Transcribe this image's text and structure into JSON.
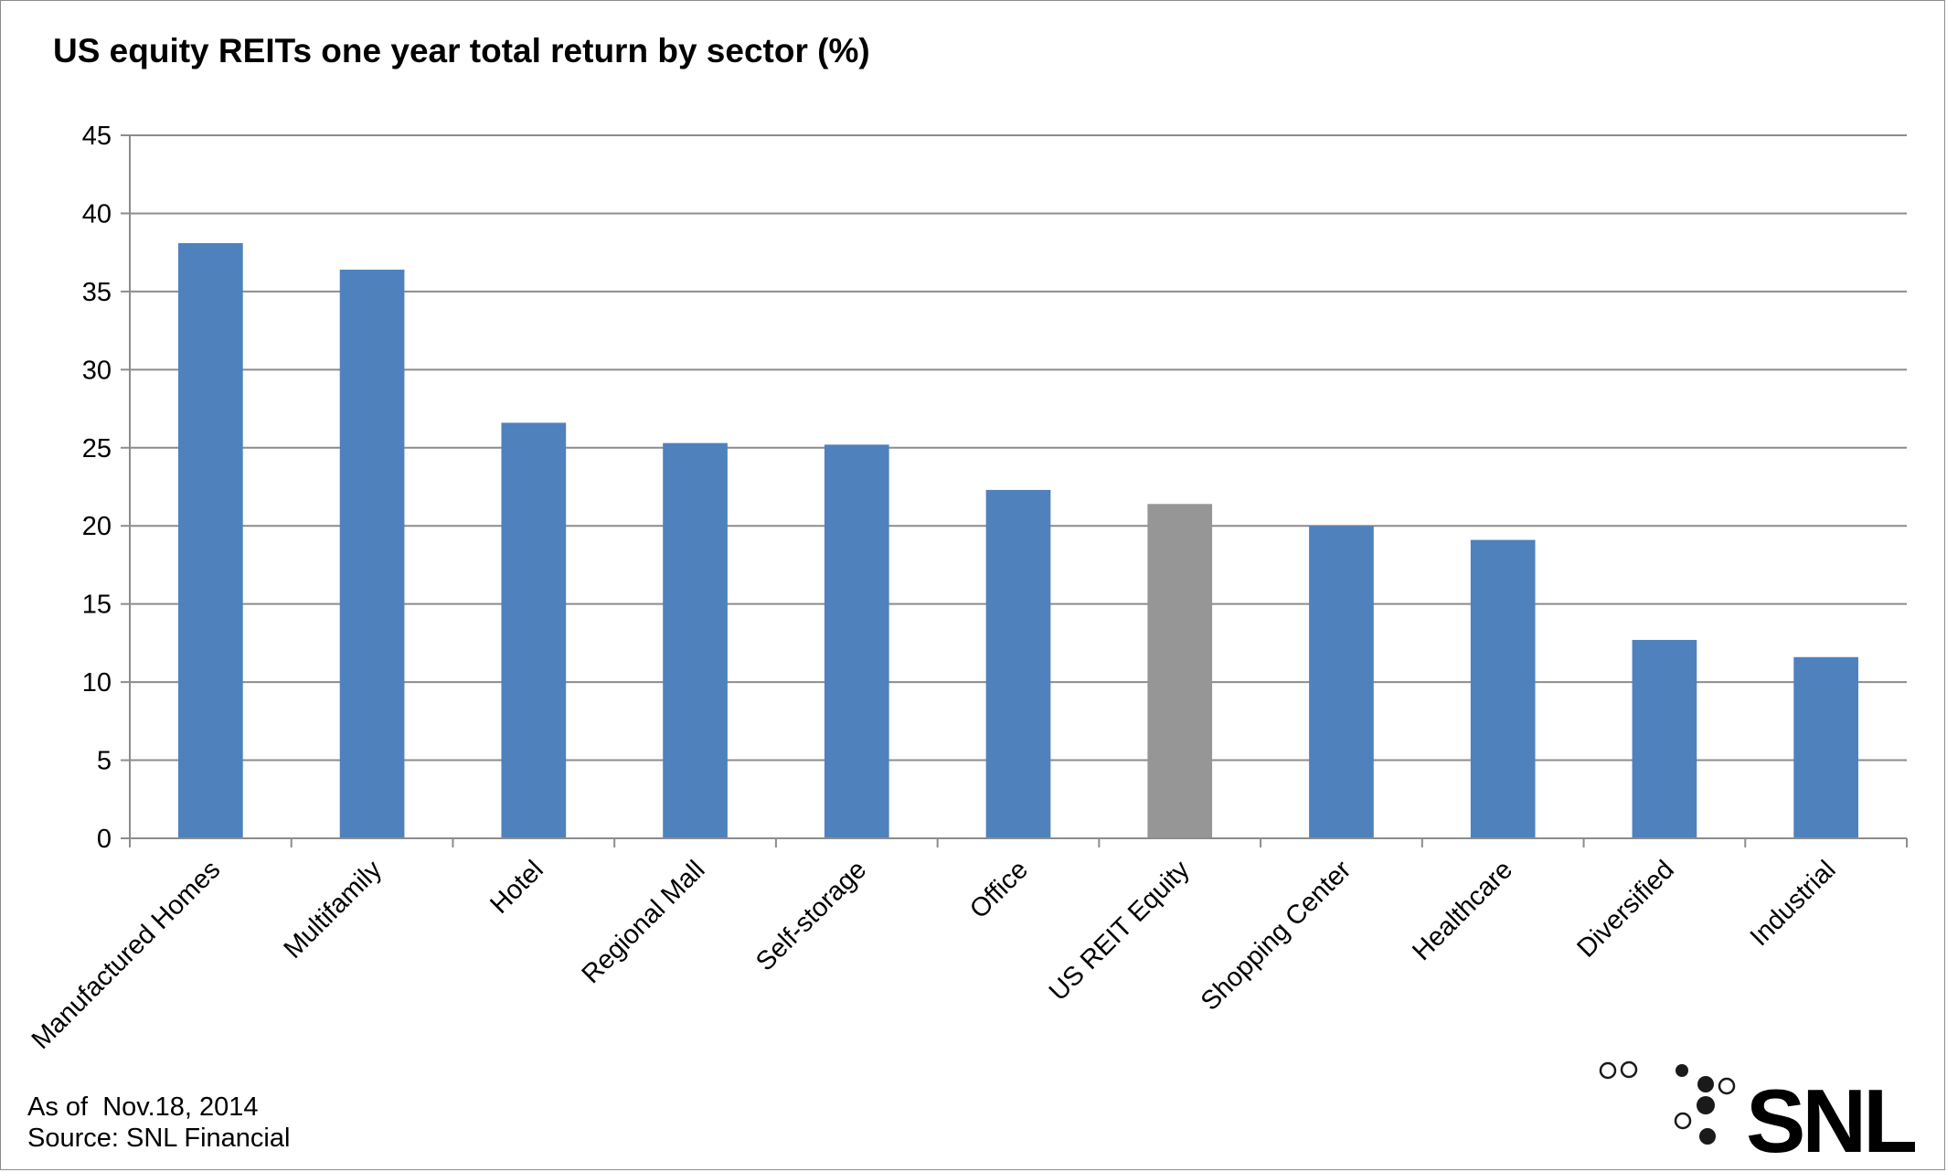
{
  "chart_data": {
    "type": "bar",
    "title": "US equity REITs one year total return by sector (%)",
    "xlabel": "",
    "ylabel": "",
    "ylim": [
      0,
      45
    ],
    "yticks": [
      "0",
      "5",
      "10",
      "15",
      "20",
      "25",
      "30",
      "35",
      "40",
      "45"
    ],
    "grid": true,
    "categories": [
      "Manufactured Homes",
      "Multifamily",
      "Hotel",
      "Regional Mall",
      "Self-storage",
      "Office",
      "US REIT Equity",
      "Shopping Center",
      "Healthcare",
      "Diversified",
      "Industrial"
    ],
    "values": [
      38.1,
      36.4,
      26.6,
      25.3,
      25.2,
      22.3,
      21.4,
      20.0,
      19.1,
      12.7,
      11.6
    ],
    "colors": {
      "sector": "#4f81bd",
      "benchmark": "#969696",
      "benchmark_category": "US REIT Equity",
      "grid": "#8c8c8c"
    }
  },
  "footnotes": {
    "as_of": "As of  Nov.18, 2014",
    "source": "Source: SNL Financial"
  },
  "logo": {
    "text": "SNL",
    "icon": "snl-dots-icon"
  }
}
